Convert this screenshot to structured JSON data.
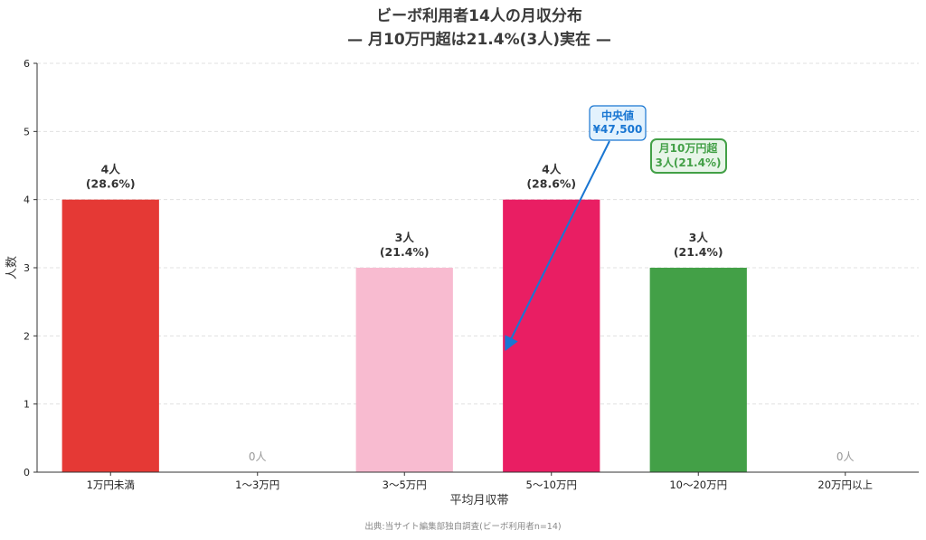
{
  "chart_data": {
    "type": "bar",
    "title": "ビーボ利用者14人の月収分布",
    "subtitle": "— 月10万円超は21.4%(3人)実在 —",
    "xlabel": "平均月収帯",
    "ylabel": "人数",
    "categories": [
      "1万円未満",
      "1〜3万円",
      "3〜5万円",
      "5〜10万円",
      "10〜20万円",
      "20万円以上"
    ],
    "values": [
      4,
      0,
      3,
      4,
      3,
      0
    ],
    "value_labels": [
      "4人",
      "0人",
      "3人",
      "4人",
      "3人",
      "0人"
    ],
    "percent_labels": [
      "(28.6%)",
      "",
      "(21.4%)",
      "(28.6%)",
      "(21.4%)",
      ""
    ],
    "colors": [
      "#e53935",
      "#f48fb1",
      "#f8bbd0",
      "#e91e63",
      "#43a047",
      "#9e9e9e"
    ],
    "ylim": [
      0,
      6
    ],
    "yticks": [
      "0",
      "1",
      "2",
      "3",
      "4",
      "5",
      "6"
    ],
    "grid": true,
    "annotations": {
      "median_line1": "中央値",
      "median_line2": "¥47,500",
      "over_line1": "月10万円超",
      "over_line2": "3人(21.4%)"
    },
    "source": "出典:当サイト編集部独自調査(ビーボ利用者n=14)"
  }
}
